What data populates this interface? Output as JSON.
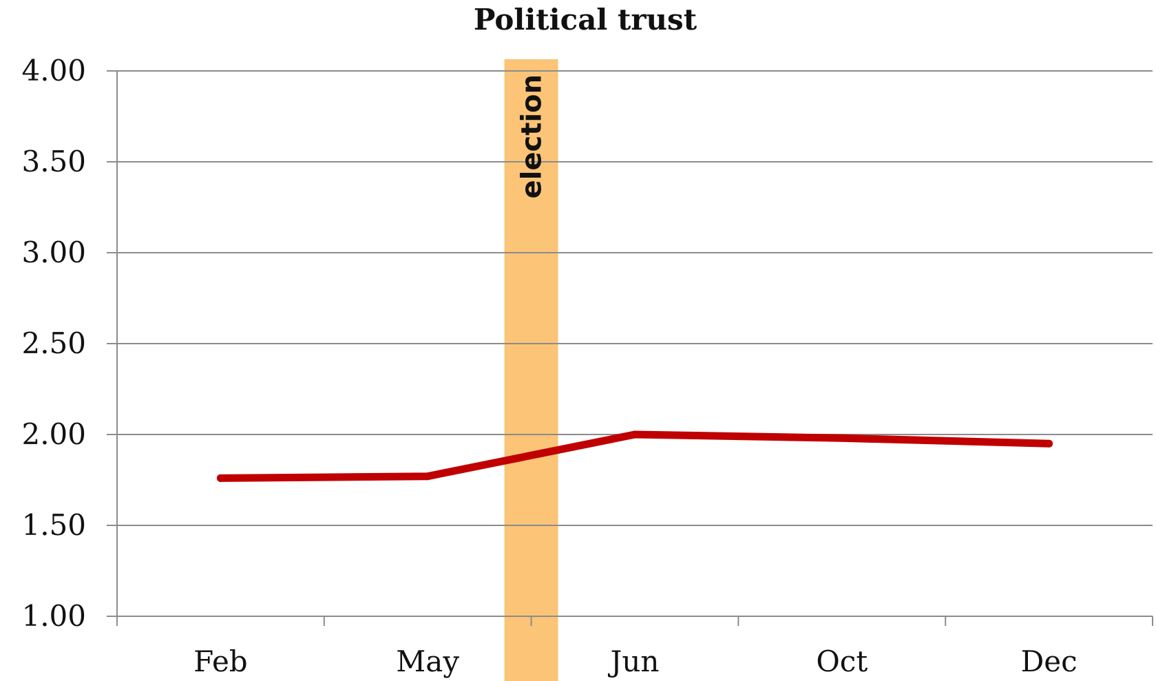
{
  "chart_data": {
    "type": "line",
    "title": "Political trust",
    "xlabel": "",
    "ylabel": "",
    "categories": [
      "Feb",
      "May",
      "Jun",
      "Oct",
      "Dec"
    ],
    "series": [
      {
        "values": [
          1.76,
          1.77,
          2.0,
          1.98,
          1.95
        ],
        "color": "#c00000"
      }
    ],
    "ylim": [
      1.0,
      4.0
    ],
    "y_ticks": [
      "1.00",
      "1.50",
      "2.00",
      "2.50",
      "3.00",
      "3.50",
      "4.00"
    ],
    "grid": true,
    "legend": "none",
    "annotations": [
      {
        "label": "election",
        "between": [
          "May",
          "Jun"
        ],
        "color": "#fbc477"
      }
    ]
  }
}
